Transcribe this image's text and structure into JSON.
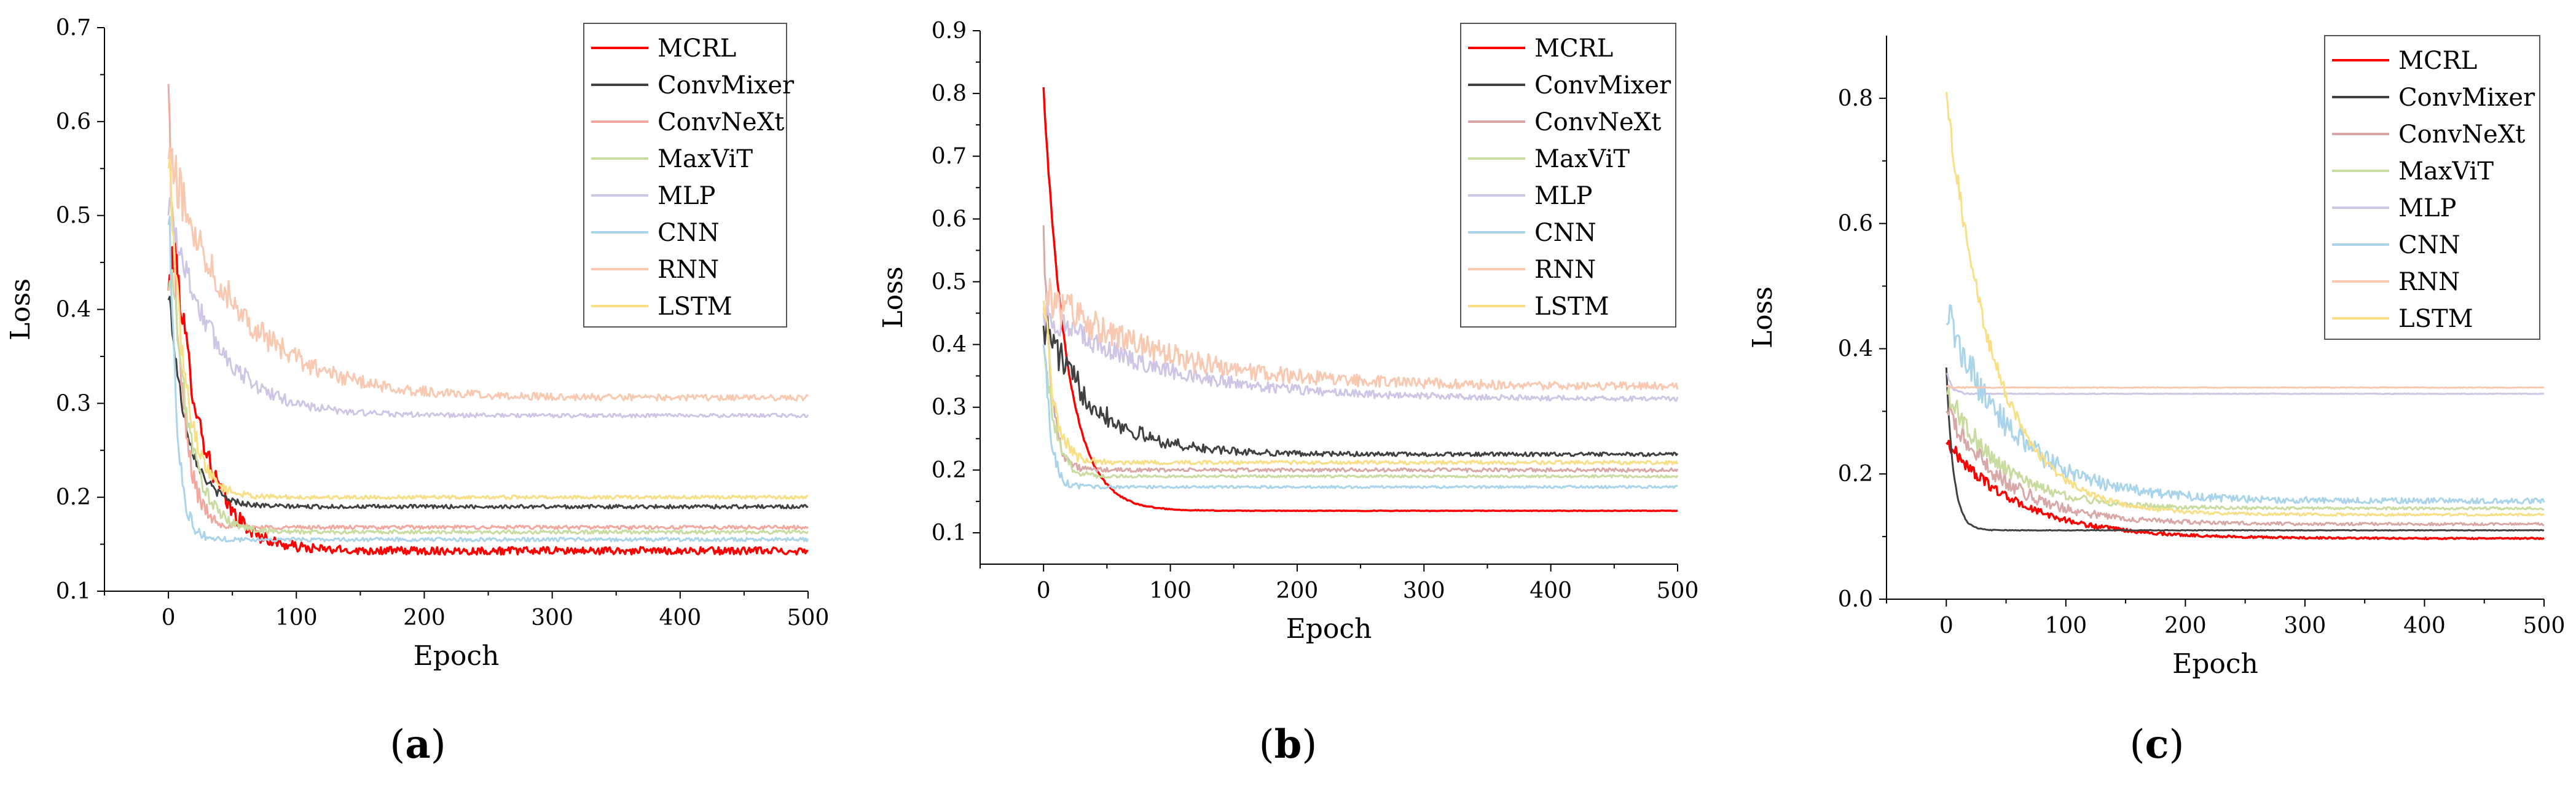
{
  "chart_data": [
    {
      "type": "line",
      "caption_prefix": "(",
      "caption_letter": "a",
      "caption_suffix": ")",
      "xlabel": "Epoch",
      "ylabel": "Loss",
      "xlim": [
        -50,
        500
      ],
      "ylim": [
        0.1,
        0.7
      ],
      "xticks": [
        0,
        100,
        200,
        300,
        400,
        500
      ],
      "yticks": [
        0.1,
        0.2,
        0.3,
        0.4,
        0.5,
        0.6,
        0.7
      ],
      "ytick_labels": [
        "0.1",
        "0.2",
        "0.3",
        "0.4",
        "0.5",
        "0.6",
        "0.7"
      ],
      "grid": false,
      "legend_position": "top-right",
      "series": [
        {
          "name": "MCRL",
          "color": "#ff0000",
          "start": 0.42,
          "peak_epoch": 5,
          "peak": 0.47,
          "final": 0.143,
          "tau": 22,
          "noise": 0.004,
          "early_noise": 0.02
        },
        {
          "name": "ConvMixer",
          "color": "#404040",
          "start": 0.41,
          "peak_epoch": 1,
          "peak": 0.41,
          "final": 0.19,
          "tau": 14,
          "noise": 0.002,
          "early_noise": 0.01
        },
        {
          "name": "ConvNeXt",
          "color": "#f2a89e",
          "start": 0.64,
          "peak_epoch": 0,
          "peak": 0.64,
          "final": 0.168,
          "tau": 9,
          "noise": 0.002,
          "early_noise": 0.03
        },
        {
          "name": "MaxViT",
          "color": "#c8dca0",
          "start": 0.42,
          "peak_epoch": 4,
          "peak": 0.43,
          "final": 0.163,
          "tau": 14,
          "noise": 0.002,
          "early_noise": 0.02
        },
        {
          "name": "MLP",
          "color": "#cfc6e6",
          "start": 0.5,
          "peak_epoch": 1,
          "peak": 0.51,
          "final": 0.287,
          "tau": 35,
          "noise": 0.002,
          "early_noise": 0.02
        },
        {
          "name": "CNN",
          "color": "#a9d4ea",
          "start": 0.49,
          "peak_epoch": 1,
          "peak": 0.49,
          "final": 0.155,
          "tau": 6,
          "noise": 0.002,
          "early_noise": 0.02
        },
        {
          "name": "RNN",
          "color": "#f9c8b0",
          "start": 0.56,
          "peak_epoch": 1,
          "peak": 0.56,
          "final": 0.306,
          "tau": 55,
          "noise": 0.003,
          "early_noise": 0.025
        },
        {
          "name": "LSTM",
          "color": "#f8df85",
          "start": 0.55,
          "peak_epoch": 1,
          "peak": 0.55,
          "final": 0.2,
          "tau": 12,
          "noise": 0.002,
          "early_noise": 0.02
        }
      ]
    },
    {
      "type": "line",
      "caption_prefix": "(",
      "caption_letter": "b",
      "caption_suffix": ")",
      "xlabel": "Epoch",
      "ylabel": "Loss",
      "xlim": [
        -50,
        500
      ],
      "ylim": [
        0.05,
        0.9
      ],
      "xticks": [
        0,
        100,
        200,
        300,
        400,
        500
      ],
      "yticks": [
        0.1,
        0.2,
        0.3,
        0.4,
        0.5,
        0.6,
        0.7,
        0.8,
        0.9
      ],
      "ytick_labels": [
        "0.1",
        "0.2",
        "0.3",
        "0.4",
        "0.5",
        "0.6",
        "0.7",
        "0.8",
        "0.9"
      ],
      "grid": false,
      "legend_position": "top-right",
      "series": [
        {
          "name": "MCRL",
          "color": "#ff0000",
          "start": 0.81,
          "peak_epoch": 0,
          "peak": 0.81,
          "final": 0.135,
          "tau": 18,
          "noise": 0.0005,
          "early_noise": 0.005
        },
        {
          "name": "ConvMixer",
          "color": "#404040",
          "start": 0.43,
          "peak_epoch": 2,
          "peak": 0.43,
          "final": 0.225,
          "tau": 40,
          "noise": 0.003,
          "early_noise": 0.03
        },
        {
          "name": "ConvNeXt",
          "color": "#d8a8a8",
          "start": 0.59,
          "peak_epoch": 0,
          "peak": 0.59,
          "final": 0.2,
          "tau": 6,
          "noise": 0.003,
          "early_noise": 0.02
        },
        {
          "name": "MaxViT",
          "color": "#c8dca0",
          "start": 0.4,
          "peak_epoch": 1,
          "peak": 0.4,
          "final": 0.19,
          "tau": 8,
          "noise": 0.002,
          "early_noise": 0.02
        },
        {
          "name": "MLP",
          "color": "#cfc6e6",
          "start": 0.45,
          "peak_epoch": 1,
          "peak": 0.45,
          "final": 0.313,
          "tau": 90,
          "noise": 0.003,
          "early_noise": 0.02
        },
        {
          "name": "CNN",
          "color": "#a9d4ea",
          "start": 0.4,
          "peak_epoch": 1,
          "peak": 0.4,
          "final": 0.173,
          "tau": 5,
          "noise": 0.002,
          "early_noise": 0.02
        },
        {
          "name": "RNN",
          "color": "#f9c8b0",
          "start": 0.46,
          "peak_epoch": 2,
          "peak": 0.48,
          "final": 0.333,
          "tau": 90,
          "noise": 0.005,
          "early_noise": 0.03
        },
        {
          "name": "LSTM",
          "color": "#f8df85",
          "start": 0.47,
          "peak_epoch": 1,
          "peak": 0.47,
          "final": 0.212,
          "tau": 8,
          "noise": 0.003,
          "early_noise": 0.03
        }
      ]
    },
    {
      "type": "line",
      "caption_prefix": "(",
      "caption_letter": "c",
      "caption_suffix": ")",
      "xlabel": "Epoch",
      "ylabel": "Loss",
      "xlim": [
        -50,
        500
      ],
      "ylim": [
        0.0,
        0.9
      ],
      "xticks": [
        0,
        100,
        200,
        300,
        400,
        500
      ],
      "yticks": [
        0.0,
        0.2,
        0.4,
        0.6,
        0.8
      ],
      "ytick_labels": [
        "0.0",
        "0.2",
        "0.4",
        "0.6",
        "0.8"
      ],
      "grid": false,
      "legend_position": "top-right",
      "series": [
        {
          "name": "MCRL",
          "color": "#ff0000",
          "start": 0.25,
          "peak_epoch": 1,
          "peak": 0.25,
          "final": 0.097,
          "tau": 60,
          "noise": 0.001,
          "early_noise": 0.01
        },
        {
          "name": "ConvMixer",
          "color": "#404040",
          "start": 0.37,
          "peak_epoch": 0,
          "peak": 0.37,
          "final": 0.11,
          "tau": 6,
          "noise": 0.0005,
          "early_noise": 0.003
        },
        {
          "name": "ConvNeXt",
          "color": "#d8a8a8",
          "start": 0.3,
          "peak_epoch": 1,
          "peak": 0.3,
          "final": 0.12,
          "tau": 50,
          "noise": 0.002,
          "early_noise": 0.02
        },
        {
          "name": "MaxViT",
          "color": "#c8dca0",
          "start": 0.33,
          "peak_epoch": 1,
          "peak": 0.33,
          "final": 0.145,
          "tau": 45,
          "noise": 0.002,
          "early_noise": 0.02
        },
        {
          "name": "MLP",
          "color": "#cfc6e6",
          "start": 0.36,
          "peak_epoch": 1,
          "peak": 0.36,
          "final": 0.328,
          "tau": 4,
          "noise": 0.0005,
          "early_noise": 0.004
        },
        {
          "name": "CNN",
          "color": "#a9d4ea",
          "start": 0.44,
          "peak_epoch": 4,
          "peak": 0.44,
          "final": 0.157,
          "tau": 55,
          "noise": 0.004,
          "early_noise": 0.03
        },
        {
          "name": "RNN",
          "color": "#f9c8b0",
          "start": 0.34,
          "peak_epoch": 1,
          "peak": 0.34,
          "final": 0.338,
          "tau": 3,
          "noise": 0.0005,
          "early_noise": 0.003
        },
        {
          "name": "LSTM",
          "color": "#f8df85",
          "start": 0.81,
          "peak_epoch": 0,
          "peak": 0.81,
          "final": 0.135,
          "tau": 40,
          "noise": 0.002,
          "early_noise": 0.02
        }
      ]
    }
  ]
}
